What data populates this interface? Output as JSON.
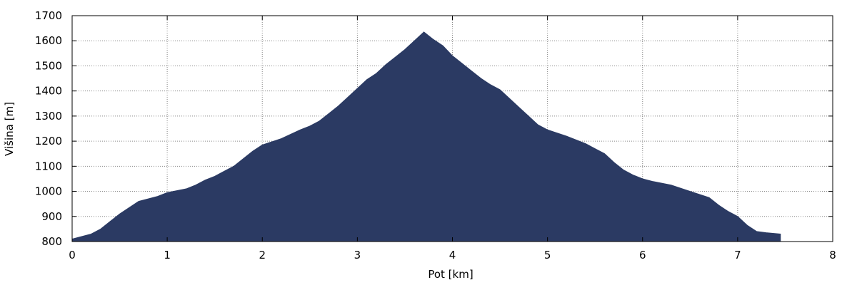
{
  "chart_data": {
    "type": "area",
    "xlabel": "Pot [km]",
    "ylabel": "Višina [m]",
    "x": [
      0,
      0.1,
      0.2,
      0.3,
      0.4,
      0.5,
      0.6,
      0.7,
      0.8,
      0.9,
      1.0,
      1.2,
      1.3,
      1.4,
      1.5,
      1.6,
      1.7,
      1.8,
      1.9,
      2.0,
      2.2,
      2.4,
      2.5,
      2.6,
      2.7,
      2.8,
      2.9,
      3.0,
      3.1,
      3.2,
      3.3,
      3.4,
      3.5,
      3.6,
      3.7,
      3.8,
      3.9,
      4.0,
      4.1,
      4.2,
      4.3,
      4.4,
      4.5,
      4.6,
      4.7,
      4.8,
      4.9,
      5.0,
      5.2,
      5.4,
      5.5,
      5.6,
      5.7,
      5.8,
      5.9,
      6.0,
      6.1,
      6.3,
      6.5,
      6.7,
      6.8,
      6.9,
      7.0,
      7.1,
      7.2,
      7.3,
      7.45
    ],
    "values": [
      810,
      820,
      830,
      850,
      880,
      910,
      935,
      960,
      970,
      980,
      995,
      1010,
      1025,
      1045,
      1060,
      1080,
      1100,
      1130,
      1160,
      1185,
      1210,
      1245,
      1260,
      1280,
      1310,
      1340,
      1375,
      1410,
      1445,
      1470,
      1505,
      1535,
      1565,
      1600,
      1635,
      1605,
      1580,
      1540,
      1510,
      1480,
      1450,
      1425,
      1405,
      1370,
      1335,
      1300,
      1265,
      1245,
      1220,
      1190,
      1170,
      1150,
      1115,
      1085,
      1065,
      1050,
      1040,
      1025,
      1000,
      975,
      945,
      920,
      900,
      865,
      840,
      835,
      830
    ],
    "color": "#2b3a63",
    "xlim": [
      0,
      8
    ],
    "xticks": [
      0,
      1,
      2,
      3,
      4,
      5,
      6,
      7,
      8
    ],
    "ylim": [
      800,
      1700
    ],
    "yticks": [
      800,
      900,
      1000,
      1100,
      1200,
      1300,
      1400,
      1500,
      1600,
      1700
    ],
    "grid": true
  }
}
